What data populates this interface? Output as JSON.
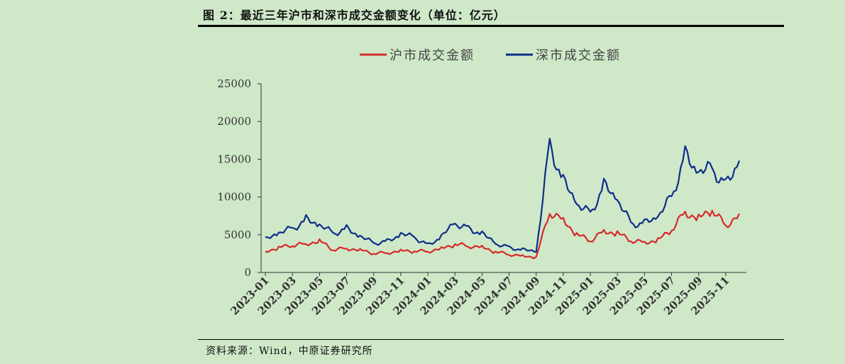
{
  "header": {
    "title": "图 2：最近三年沪市和深市成交金额变化（单位：亿元）"
  },
  "footer": {
    "source": "资料来源：Wind，中原证券研究所"
  },
  "chart_data": {
    "type": "line",
    "title": "图 2：最近三年沪市和深市成交金额变化（单位：亿元）",
    "xlabel": "",
    "ylabel": "",
    "ylim": [
      0,
      25000
    ],
    "yticks": [
      "0",
      "5000",
      "10000",
      "15000",
      "20000",
      "25000"
    ],
    "xticks": [
      "2023-01",
      "2023-03",
      "2023-05",
      "2023-07",
      "2023-09",
      "2023-11",
      "2024-01",
      "2024-03",
      "2024-05",
      "2024-07",
      "2024-09",
      "2024-11",
      "2025-01",
      "2025-03",
      "2025-05",
      "2025-07",
      "2025-09",
      "2025-11"
    ],
    "legend_position": "top",
    "grid": false,
    "x_unit": "month",
    "x": [
      "2023-01",
      "2023-02",
      "2023-03",
      "2023-04",
      "2023-05",
      "2023-06",
      "2023-07",
      "2023-08",
      "2023-09",
      "2023-10",
      "2023-11",
      "2023-12",
      "2024-01",
      "2024-02",
      "2024-03",
      "2024-04",
      "2024-05",
      "2024-06",
      "2024-07",
      "2024-08",
      "2024-09",
      "2024-10",
      "2024-11",
      "2024-12",
      "2025-01",
      "2025-02",
      "2025-03",
      "2025-04",
      "2025-05",
      "2025-06",
      "2025-07",
      "2025-08",
      "2025-09",
      "2025-10",
      "2025-11",
      "2025-12"
    ],
    "series": [
      {
        "name": "沪市成交金额",
        "color": "#d62a2a",
        "values": [
          2800,
          3300,
          3600,
          3800,
          4200,
          3000,
          3200,
          3000,
          2500,
          2600,
          2900,
          2800,
          2800,
          3200,
          3700,
          3500,
          3400,
          2700,
          2400,
          2200,
          2000,
          8000,
          7000,
          5000,
          4200,
          5500,
          5200,
          4200,
          4000,
          4300,
          5600,
          8000,
          7200,
          8200,
          6200,
          7800
        ]
      },
      {
        "name": "深市成交金额",
        "color": "#0d2d8a",
        "values": [
          4300,
          5200,
          5800,
          7000,
          6200,
          5200,
          5800,
          4700,
          3900,
          4100,
          5000,
          4700,
          3600,
          4700,
          6500,
          5800,
          5100,
          3800,
          3300,
          3000,
          2700,
          17000,
          12000,
          9000,
          7800,
          11500,
          9500,
          6500,
          6500,
          7300,
          10000,
          15500,
          13000,
          13800,
          11500,
          14800
        ]
      }
    ]
  }
}
